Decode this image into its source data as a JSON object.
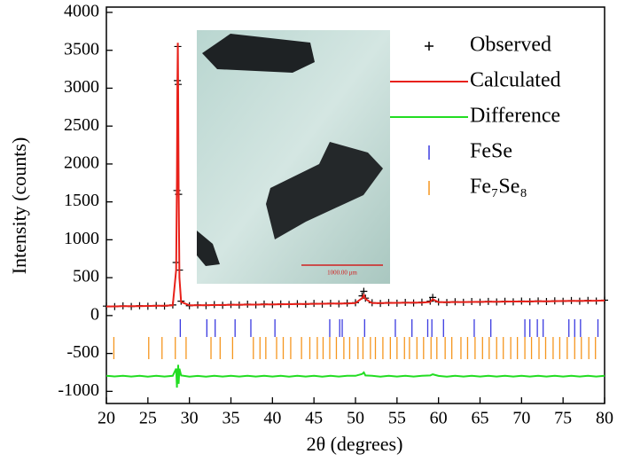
{
  "chart_data": {
    "type": "line",
    "xlabel": "2θ (degrees)",
    "ylabel": "Intensity (counts)",
    "xlim": [
      20,
      80
    ],
    "ylim": [
      -1160,
      4070
    ],
    "xticks": [
      20,
      25,
      30,
      35,
      40,
      45,
      50,
      55,
      60,
      65,
      70,
      75,
      80
    ],
    "yticks": [
      -1000,
      -500,
      0,
      500,
      1000,
      1500,
      2000,
      2500,
      3000,
      3500,
      4000
    ],
    "x": [
      20,
      21,
      22,
      23,
      24,
      25,
      26,
      27,
      28,
      28.4,
      28.5,
      28.55,
      28.6,
      28.65,
      28.7,
      28.8,
      29,
      30,
      31,
      32,
      33,
      34,
      35,
      36,
      37,
      38,
      39,
      40,
      41,
      42,
      43,
      44,
      45,
      46,
      47,
      48,
      49,
      50,
      50.8,
      51,
      51.2,
      52,
      53,
      54,
      55,
      56,
      57,
      58,
      59,
      59.3,
      60,
      61,
      62,
      63,
      64,
      65,
      66,
      67,
      68,
      69,
      70,
      71,
      72,
      73,
      74,
      75,
      76,
      77,
      78,
      79,
      80
    ],
    "series": [
      {
        "name": "Observed",
        "color": "#000000",
        "style": "markers",
        "values": [
          125,
          118,
          128,
          120,
          130,
          122,
          133,
          126,
          140,
          700,
          1650,
          3100,
          3550,
          3050,
          1600,
          600,
          190,
          130,
          140,
          132,
          144,
          136,
          146,
          139,
          150,
          141,
          152,
          144,
          154,
          146,
          157,
          149,
          160,
          151,
          162,
          155,
          165,
          170,
          260,
          320,
          230,
          170,
          161,
          172,
          164,
          174,
          166,
          177,
          190,
          240,
          180,
          172,
          183,
          175,
          185,
          177,
          187,
          179,
          189,
          181,
          191,
          183,
          193,
          185,
          195,
          188,
          198,
          190,
          200,
          192,
          203
        ]
      },
      {
        "name": "Calculated",
        "color": "#e8211a",
        "style": "line",
        "values": [
          120,
          121,
          123,
          124,
          125,
          127,
          128,
          130,
          135,
          600,
          1800,
          3000,
          3600,
          2900,
          1700,
          500,
          180,
          135,
          136,
          137,
          139,
          140,
          141,
          143,
          144,
          145,
          147,
          148,
          149,
          151,
          152,
          153,
          155,
          156,
          157,
          159,
          160,
          165,
          230,
          270,
          220,
          165,
          166,
          167,
          168,
          169,
          170,
          172,
          180,
          215,
          176,
          177,
          178,
          179,
          180,
          181,
          182,
          183,
          184,
          185,
          186,
          187,
          188,
          189,
          190,
          192,
          193,
          194,
          195,
          196,
          198
        ]
      },
      {
        "name": "Difference",
        "color": "#22dd22",
        "style": "line",
        "values": [
          -795,
          -803,
          -795,
          -804,
          -795,
          -805,
          -795,
          -804,
          -795,
          -700,
          -950,
          -700,
          -850,
          -650,
          -900,
          -700,
          -790,
          -805,
          -796,
          -805,
          -795,
          -804,
          -795,
          -804,
          -794,
          -804,
          -795,
          -804,
          -795,
          -805,
          -795,
          -804,
          -795,
          -805,
          -795,
          -804,
          -795,
          -795,
          -770,
          -750,
          -790,
          -795,
          -805,
          -795,
          -804,
          -795,
          -804,
          -795,
          -790,
          -775,
          -796,
          -805,
          -795,
          -804,
          -795,
          -804,
          -795,
          -804,
          -795,
          -804,
          -795,
          -804,
          -795,
          -804,
          -795,
          -804,
          -795,
          -804,
          -795,
          -804,
          -795
        ]
      },
      {
        "name": "FeSe",
        "color": "#3a3ae0",
        "style": "ticks",
        "x": [
          28.9,
          32.1,
          33.1,
          35.5,
          37.4,
          40.3,
          46.9,
          48.1,
          48.4,
          51.1,
          54.8,
          56.8,
          58.7,
          59.2,
          60.6,
          64.3,
          66.3,
          70.4,
          71.0,
          71.9,
          72.6,
          75.7,
          76.4,
          77.1,
          79.2
        ]
      },
      {
        "name": "Fe₇Se₈",
        "color": "#f5961e",
        "style": "ticks",
        "x": [
          20.9,
          25.1,
          26.7,
          28.3,
          29.6,
          32.6,
          33.7,
          35.2,
          37.7,
          38.5,
          39.2,
          40.5,
          41.3,
          42.2,
          43.5,
          44.5,
          45.4,
          46.1,
          46.9,
          47.7,
          48.6,
          49.3,
          50.3,
          50.9,
          51.8,
          52.4,
          53.3,
          54.2,
          55.0,
          55.9,
          56.5,
          57.4,
          58.2,
          59.1,
          59.8,
          60.8,
          61.6,
          62.7,
          63.5,
          64.4,
          65.3,
          66.1,
          67.0,
          67.8,
          68.7,
          69.5,
          70.4,
          71.2,
          72.1,
          72.9,
          73.8,
          74.6,
          75.5,
          76.4,
          77.2,
          78.1,
          78.9
        ]
      }
    ],
    "annotations": [
      "1000.00 μm"
    ]
  }
}
